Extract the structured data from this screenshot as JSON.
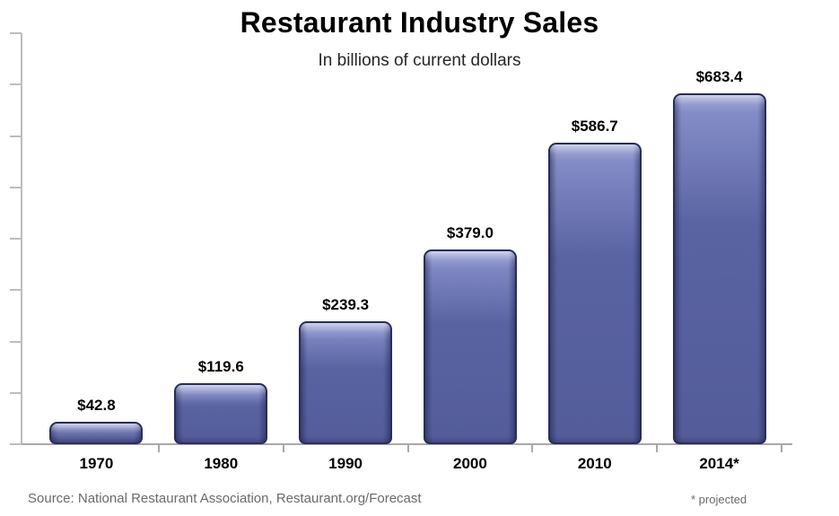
{
  "chart_data": {
    "type": "bar",
    "title": "Restaurant Industry Sales",
    "subtitle": "In billions of current dollars",
    "categories": [
      "1970",
      "1980",
      "1990",
      "2000",
      "2010",
      "2014*"
    ],
    "values": [
      42.8,
      119.6,
      239.3,
      379.0,
      586.7,
      683.4
    ],
    "value_labels": [
      "$42.8",
      "$119.6",
      "$239.3",
      "$379.0",
      "$586.7",
      "$683.4"
    ],
    "xlabel": "",
    "ylabel": "",
    "ylim": [
      0,
      800
    ],
    "y_tick_step": 100,
    "y_tick_labels_visible": false,
    "grid": false,
    "legend": "none",
    "colors": {
      "bar_fill": "#5a63a2",
      "bar_fill_light": "#8a93cc",
      "bar_border": "#272d5b",
      "axis": "#a9a9a9",
      "value_text": "#000000",
      "footer_text": "#6a6a6a"
    }
  },
  "footer": {
    "source": "Source: National Restaurant Association, Restaurant.org/Forecast",
    "footnote": "* projected"
  }
}
